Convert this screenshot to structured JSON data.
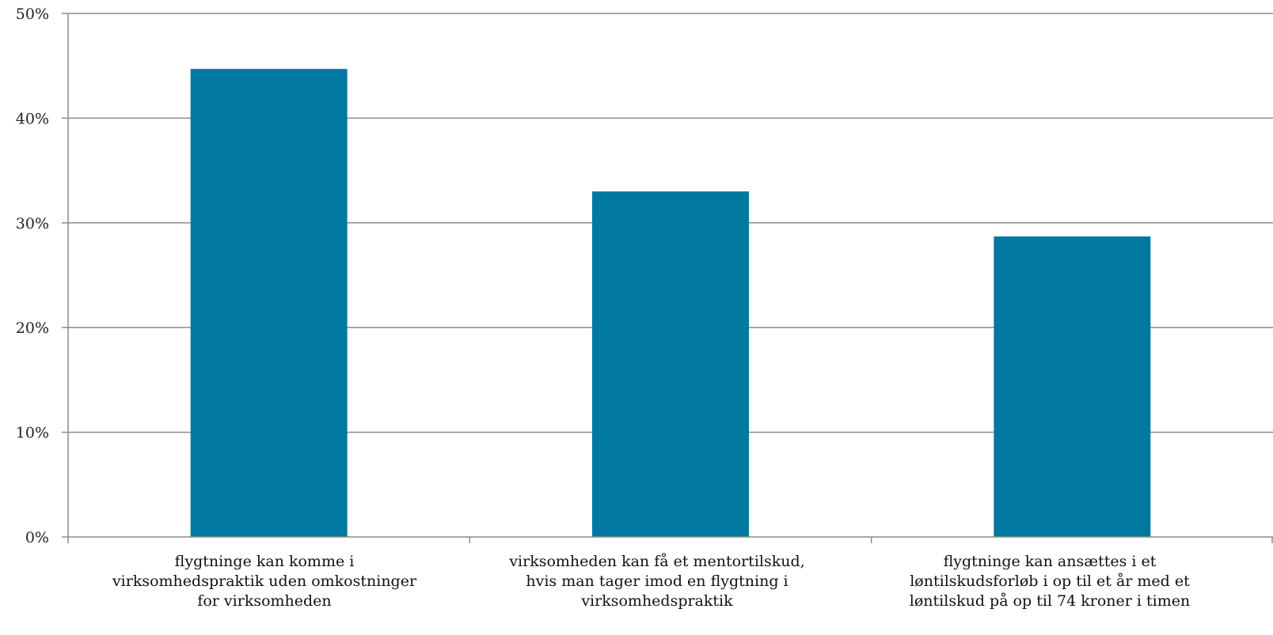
{
  "chart_data": {
    "type": "bar",
    "title": "",
    "xlabel": "",
    "ylabel": "",
    "ylim": [
      0,
      50
    ],
    "yticks": [
      "0%",
      "10%",
      "20%",
      "30%",
      "40%",
      "50%"
    ],
    "grid": true,
    "legend": "none",
    "categories": [
      [
        "flygtninge kan komme i",
        "virksomhedspraktik uden omkostninger",
        "for virksomheden"
      ],
      [
        "virksomheden kan få et mentortilskud,",
        "hvis man tager imod en flygtning i",
        "virksomhedspraktik"
      ],
      [
        "flygtninge kan ansættes i et",
        "løntilskudsforløb i op til et år med et",
        "løntilskud på op til 74 kroner i timen"
      ]
    ],
    "values": [
      44.7,
      33.0,
      28.7
    ],
    "colors": {
      "bar": "#00789f",
      "grid": "#8c8c8c",
      "axis": "#8c8c8c"
    }
  }
}
